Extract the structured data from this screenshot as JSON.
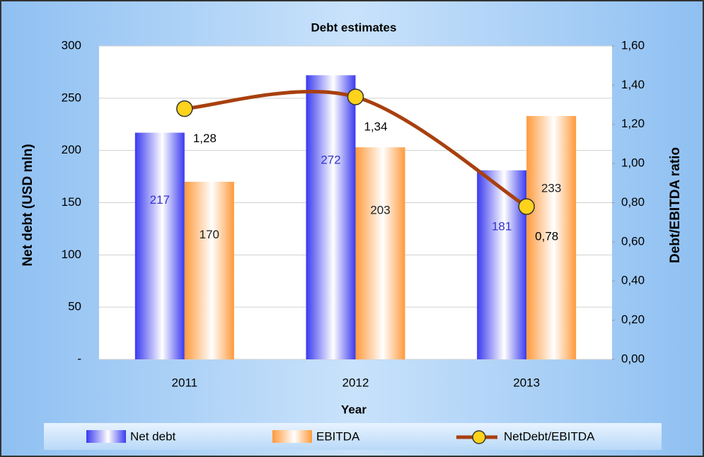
{
  "chart_data": {
    "type": "bar_line",
    "title": "Debt estimates",
    "x_label": "Year",
    "y_label": "Net debt (USD mln)",
    "y2_label": "Debt/EBITDA ratio",
    "categories": [
      "2011",
      "2012",
      "2013"
    ],
    "series": [
      {
        "name": "Net debt",
        "type": "bar",
        "color": "#3a3af0",
        "values": [
          217,
          272,
          181
        ]
      },
      {
        "name": "EBITDA",
        "type": "bar",
        "color": "#ff9a3c",
        "values": [
          170,
          203,
          233
        ]
      },
      {
        "name": "NetDebt/EBITDA",
        "type": "line",
        "axis": "y2",
        "color": "#a8400e",
        "marker_color": "#ffd21c",
        "values": [
          1.28,
          1.34,
          0.78
        ],
        "value_labels": [
          "1,28",
          "1,34",
          "0,78"
        ]
      }
    ],
    "ylim": [
      0,
      300
    ],
    "yticks": [
      {
        "value": 0,
        "label": "-"
      },
      50,
      100,
      150,
      200,
      250,
      300
    ],
    "y2lim": [
      0,
      1.6
    ],
    "y2ticks": [
      {
        "value": 0,
        "label": "0,00"
      },
      {
        "value": 0.2,
        "label": "0,20"
      },
      {
        "value": 0.4,
        "label": "0,40"
      },
      {
        "value": 0.6,
        "label": "0,60"
      },
      {
        "value": 0.8,
        "label": "0,80"
      },
      {
        "value": 1.0,
        "label": "1,00"
      },
      {
        "value": 1.2,
        "label": "1,20"
      },
      {
        "value": 1.4,
        "label": "1,40"
      },
      {
        "value": 1.6,
        "label": "1,60"
      }
    ],
    "grid": true,
    "legend": "bottom"
  }
}
